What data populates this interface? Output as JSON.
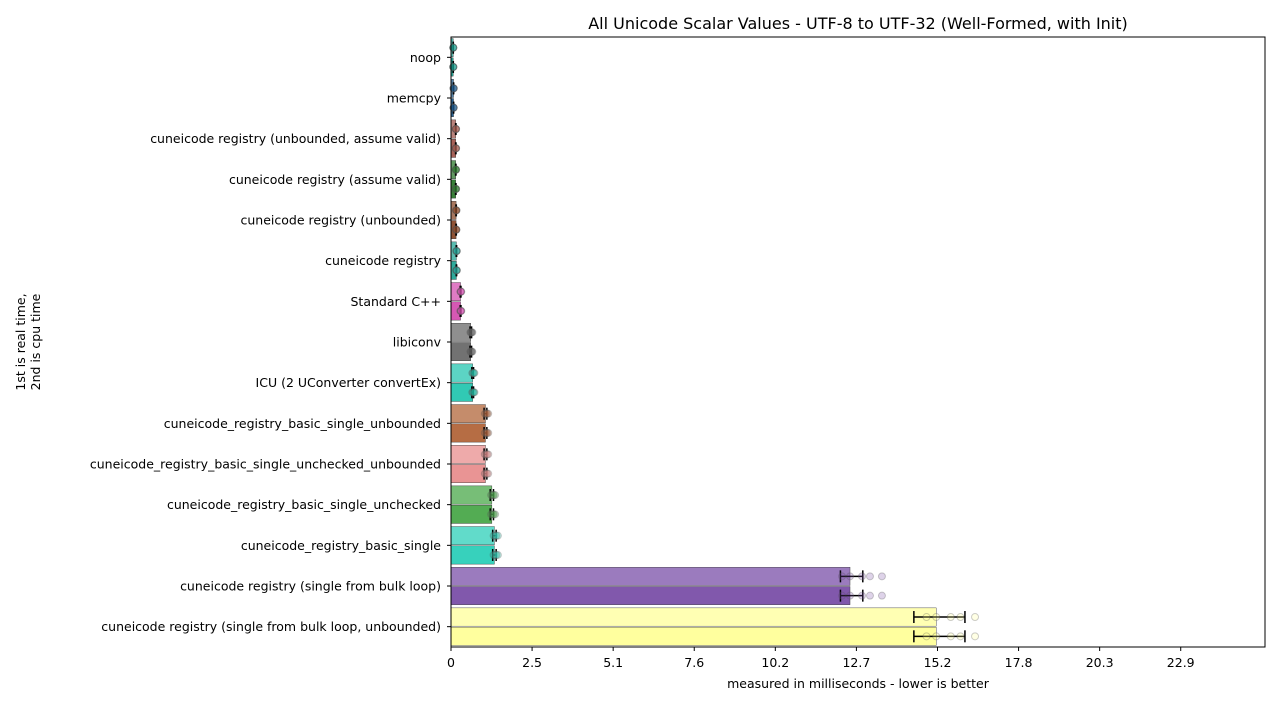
{
  "chart_data": {
    "type": "bar",
    "orientation": "horizontal",
    "title": "All Unicode Scalar Values - UTF-8 to UTF-32 (Well-Formed, with Init)",
    "xlabel": "measured in milliseconds - lower is better",
    "ylabel_line1": "1st is real time,",
    "ylabel_line2": "2nd is cpu time",
    "xlim": [
      0,
      25.5
    ],
    "xticks": [
      "0",
      "2.5",
      "5.1",
      "7.6",
      "10.2",
      "12.7",
      "15.2",
      "17.8",
      "20.3",
      "22.9"
    ],
    "xtick_values": [
      0,
      2.54,
      5.08,
      7.62,
      10.16,
      12.7,
      15.24,
      17.78,
      20.32,
      22.86
    ],
    "grid": false,
    "series_note": "each category has two bars: 1st is real time, 2nd is cpu time",
    "categories": [
      {
        "label": "noop",
        "real": 0.07,
        "cpu": 0.07,
        "color": "#1a9e8f"
      },
      {
        "label": "memcpy",
        "real": 0.08,
        "cpu": 0.08,
        "color": "#1f5b8e"
      },
      {
        "label": "cuneicode registry (unbounded, assume valid)",
        "real": 0.15,
        "cpu": 0.15,
        "color": "#a35a50"
      },
      {
        "label": "cuneicode registry (assume valid)",
        "real": 0.15,
        "cpu": 0.15,
        "color": "#2e7a2e"
      },
      {
        "label": "cuneicode registry (unbounded)",
        "real": 0.16,
        "cpu": 0.16,
        "color": "#8a4a2a"
      },
      {
        "label": "cuneicode registry",
        "real": 0.17,
        "cpu": 0.17,
        "color": "#23a596"
      },
      {
        "label": "Standard C++",
        "real": 0.3,
        "cpu": 0.3,
        "color": "#d44fb0"
      },
      {
        "label": "libiconv",
        "real": 0.62,
        "cpu": 0.62,
        "color": "#6a6a6a"
      },
      {
        "label": "ICU (2 UConverter convertEx)",
        "real": 0.68,
        "cpu": 0.68,
        "color": "#26c6b0"
      },
      {
        "label": "cuneicode_registry_basic_single_unbounded",
        "real": 1.08,
        "cpu": 1.08,
        "color": "#b2653a"
      },
      {
        "label": "cuneicode_registry_basic_single_unchecked_unbounded",
        "real": 1.08,
        "cpu": 1.08,
        "color": "#e88e8e"
      },
      {
        "label": "cuneicode_registry_basic_single_unchecked",
        "real": 1.28,
        "cpu": 1.28,
        "color": "#4aa84a"
      },
      {
        "label": "cuneicode_registry_basic_single",
        "real": 1.36,
        "cpu": 1.36,
        "color": "#2ccfb8"
      },
      {
        "label": "cuneicode registry (single from bulk loop)",
        "real": 12.5,
        "cpu": 12.5,
        "color": "#7a4fa8",
        "err": [
          12.2,
          12.9
        ]
      },
      {
        "label": "cuneicode registry (single from bulk loop, unbounded)",
        "real": 15.2,
        "cpu": 15.2,
        "color": "#ffff99",
        "err": [
          14.5,
          16.1
        ]
      }
    ]
  }
}
